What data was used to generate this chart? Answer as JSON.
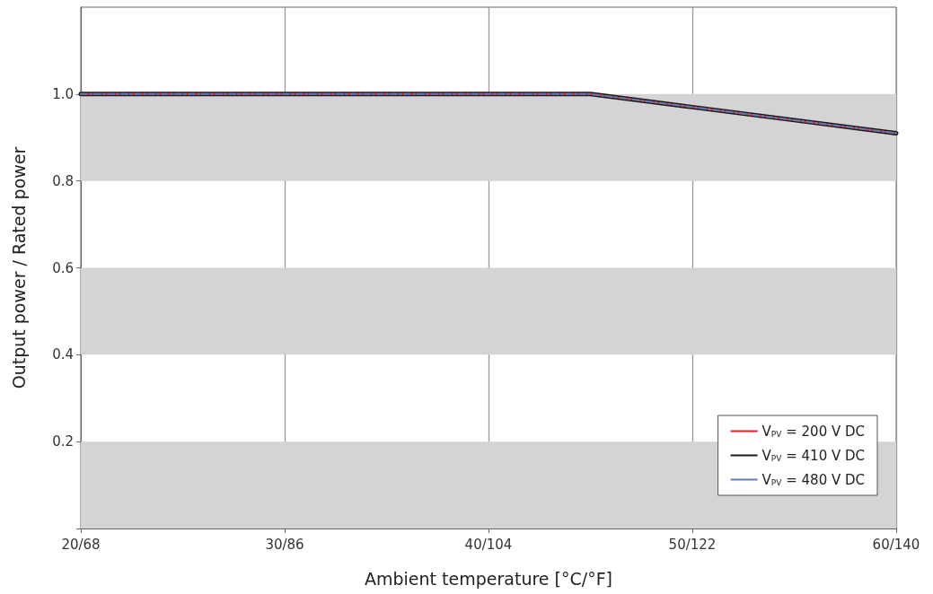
{
  "chart_data": {
    "type": "line",
    "xlabel": "Ambient temperature [°C/°F]",
    "ylabel": "Output power / Rated power",
    "categories": [
      "20/68",
      null,
      "30/86",
      null,
      "40/104",
      null,
      "50/122",
      null,
      "60/140"
    ],
    "series": [
      {
        "name": "V$_{PV}$ = 200 V DC",
        "color": "#e8202a",
        "values": [
          1.0,
          1.0,
          1.0,
          1.0,
          1.0,
          1.0,
          0.97,
          0.94,
          0.91
        ],
        "line_style": "solid"
      },
      {
        "name": "V$_{PV}$ = 410 V DC",
        "color": "#1a1a1a",
        "values": [
          1.0,
          1.0,
          1.0,
          1.0,
          1.0,
          1.0,
          0.97,
          0.94,
          0.91
        ],
        "line_style": "solid"
      },
      {
        "name": "V$_{PV}$ = 480 V DC",
        "color": "#5b7fb5",
        "values": [
          1.0,
          1.0,
          1.0,
          1.0,
          1.0,
          1.0,
          0.97,
          0.94,
          0.91
        ],
        "line_style": "dashed"
      }
    ],
    "ylim": [
      0,
      1.2
    ],
    "yticks": [
      {
        "value": 0,
        "label": null
      },
      0.2,
      0.4,
      0.6,
      0.8,
      {
        "value": 1.0,
        "label": "1.0"
      }
    ],
    "bands": [
      {
        "axis": "y",
        "from": 0,
        "to": 0.2,
        "color": "#d4d4d6"
      },
      {
        "axis": "y",
        "from": 0.4,
        "to": 0.6,
        "color": "#d4d4d6"
      },
      {
        "axis": "y",
        "from": 0.8,
        "to": 1.0,
        "color": "#d4d4d6"
      }
    ],
    "grid": "x",
    "legend": "bottom right",
    "marker": "none"
  }
}
